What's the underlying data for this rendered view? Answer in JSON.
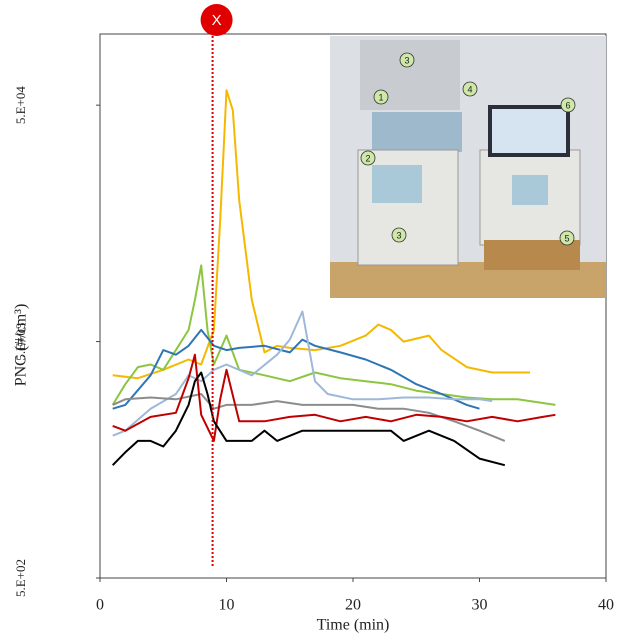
{
  "chart_data": {
    "type": "line",
    "x_label": "Time (min)",
    "y_label": "PNC (#/cm³)",
    "xlim": [
      0,
      40
    ],
    "xticks": [
      0,
      10,
      20,
      30,
      40
    ],
    "ylim": [
      500,
      100000
    ],
    "log_y": true,
    "yticks": [
      {
        "value": 500,
        "label": "5.E+02"
      },
      {
        "value": 5000,
        "label": "5.E+03"
      },
      {
        "value": 50000,
        "label": "5.E+04"
      }
    ],
    "marker": {
      "x": 8.9,
      "label": "X",
      "color": "#e00000"
    },
    "inset_labels": [
      "3",
      "1",
      "4",
      "6",
      "2",
      "3",
      "5"
    ],
    "series": [
      {
        "color": "#f5b800",
        "x": [
          1,
          3,
          5,
          7,
          8,
          9,
          9.5,
          10,
          10.5,
          11,
          12,
          13,
          14,
          15,
          17,
          19,
          21,
          22,
          23,
          24,
          26,
          27,
          29,
          31,
          34
        ],
        "values": [
          3600,
          3500,
          3800,
          4200,
          4000,
          5600,
          16300,
          57800,
          47600,
          19800,
          7500,
          4500,
          4800,
          4700,
          4600,
          4800,
          5300,
          5900,
          5600,
          5000,
          5300,
          4600,
          3900,
          3700,
          3700
        ]
      },
      {
        "color": "#8cc63f",
        "x": [
          1,
          2,
          3,
          4,
          5,
          6,
          7,
          7.5,
          8,
          8.5,
          9,
          10,
          11,
          13,
          15,
          17,
          19,
          21,
          23,
          25,
          27,
          29,
          31,
          33,
          35,
          36
        ],
        "values": [
          2700,
          3300,
          3900,
          4000,
          3800,
          4600,
          5600,
          7500,
          10500,
          5600,
          4000,
          5300,
          3800,
          3600,
          3400,
          3700,
          3500,
          3400,
          3300,
          3100,
          3000,
          2900,
          2850,
          2850,
          2750,
          2700
        ]
      },
      {
        "color": "#2e75b6",
        "x": [
          1,
          2,
          4,
          5,
          6,
          7,
          8,
          9,
          10,
          11,
          13,
          15,
          16,
          17,
          19,
          21,
          23,
          25,
          27,
          29,
          30
        ],
        "values": [
          2600,
          2700,
          3600,
          4600,
          4400,
          4800,
          5600,
          4800,
          4600,
          4700,
          4800,
          4500,
          5100,
          4800,
          4500,
          4200,
          3800,
          3300,
          3000,
          2700,
          2600
        ]
      },
      {
        "color": "#9db8d9",
        "x": [
          1,
          2,
          4,
          6,
          7,
          8,
          9,
          10,
          12,
          14,
          15,
          16,
          17,
          18,
          20,
          22,
          24,
          26,
          28,
          30,
          31
        ],
        "values": [
          2000,
          2100,
          2600,
          3000,
          3600,
          3400,
          3800,
          4000,
          3600,
          4400,
          5100,
          6700,
          3400,
          3000,
          2850,
          2850,
          2900,
          2900,
          2850,
          2850,
          2800
        ]
      },
      {
        "color": "#8c8c8c",
        "x": [
          1,
          2,
          4,
          6,
          8,
          9,
          10,
          12,
          14,
          16,
          18,
          20,
          22,
          24,
          26,
          28,
          30,
          32
        ],
        "values": [
          2700,
          2850,
          2900,
          2850,
          3000,
          2600,
          2700,
          2700,
          2800,
          2700,
          2700,
          2700,
          2600,
          2600,
          2500,
          2300,
          2100,
          1900
        ]
      },
      {
        "color": "#c00000",
        "x": [
          1,
          2,
          4,
          6,
          7,
          7.5,
          8,
          9,
          9.5,
          10,
          11,
          13,
          15,
          17,
          19,
          21,
          23,
          25,
          27,
          29,
          31,
          33,
          35,
          36
        ],
        "values": [
          2200,
          2100,
          2400,
          2500,
          3500,
          4400,
          2450,
          1900,
          2850,
          3800,
          2300,
          2300,
          2400,
          2450,
          2300,
          2400,
          2300,
          2450,
          2400,
          2300,
          2400,
          2300,
          2400,
          2450
        ]
      },
      {
        "color": "#000000",
        "x": [
          1,
          2,
          3,
          4,
          5,
          6,
          7,
          7.5,
          8,
          8.5,
          9,
          10,
          12,
          13,
          14,
          16,
          18,
          20,
          22,
          23,
          24,
          26,
          28,
          30,
          32
        ],
        "values": [
          1500,
          1700,
          1900,
          1900,
          1800,
          2100,
          2700,
          3400,
          3700,
          3000,
          2300,
          1900,
          1900,
          2100,
          1900,
          2100,
          2100,
          2100,
          2100,
          2100,
          1900,
          2100,
          1900,
          1600,
          1500
        ]
      }
    ]
  }
}
